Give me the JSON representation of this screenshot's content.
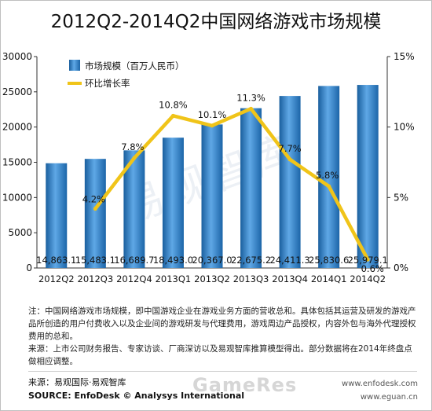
{
  "chart_data": {
    "type": "bar",
    "title": "2012Q2-2014Q2中国网络游戏市场规模",
    "categories": [
      "2012Q2",
      "2012Q3",
      "2012Q4",
      "2013Q1",
      "2013Q2",
      "2013Q3",
      "2013Q4",
      "2014Q1",
      "2014Q2"
    ],
    "series": [
      {
        "name": "市场规模（百万人民币）",
        "type": "bar",
        "axis": "left",
        "color": "#2c7fc4",
        "values": [
          14863.1,
          15483.1,
          16689.7,
          18493.0,
          20367.0,
          22675.2,
          24411.3,
          25830.6,
          25979.1
        ],
        "labels": [
          "14,863.1",
          "15,483.1",
          "16,689.7",
          "18,493.0",
          "20,367.0",
          "22,675.2",
          "24,411.3",
          "25,830.6",
          "25,979.1"
        ]
      },
      {
        "name": "环比增长率",
        "type": "line",
        "axis": "right",
        "color": "#f0c419",
        "values": [
          null,
          4.2,
          7.8,
          10.8,
          10.1,
          11.3,
          7.7,
          5.8,
          0.6
        ],
        "labels": [
          "",
          "4.2%",
          "7.8%",
          "10.8%",
          "10.1%",
          "11.3%",
          "7.7%",
          "5.8%",
          "0.6%"
        ]
      }
    ],
    "y_left": {
      "ylim": [
        0,
        30000
      ],
      "ticks": [
        "0",
        "5000",
        "10000",
        "15000",
        "20000",
        "25000",
        "30000"
      ]
    },
    "y_right": {
      "ylim": [
        0,
        15
      ],
      "ticks": [
        "0%",
        "5%",
        "10%",
        "15%"
      ]
    },
    "legend": "top-left",
    "grid": false
  },
  "watermark": "易观智库",
  "notes": [
    "注：中国网络游戏市场规模，即中国游戏企业在游戏业务方面的营收总和。具体包括其运营及研发的游戏产品所创造的用户付费收入以及企业间的游戏研发与代理费用，游戏周边产品授权，内容外包与海外代理授权费用的总和。",
    "来源：上市公司财务报告、专家访谈、厂商深访以及易观智库推算模型得出。部分数据将在2014年终盘点做相应调整。"
  ],
  "sources": {
    "line1": "来源：易观国际·易观智库",
    "line2": "SOURCE: EnfoDesk © Analysys International",
    "site1": "www.enfodesk.com",
    "site2": "www.eguan.cn",
    "brand": "GameRes"
  }
}
